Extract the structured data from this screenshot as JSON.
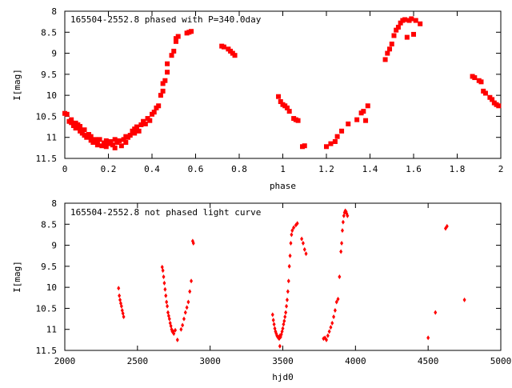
{
  "chart_data": [
    {
      "type": "scatter",
      "title": "165504-2552.8 phased with P=340.0day",
      "xlabel": "phase",
      "ylabel": "I[mag]",
      "xlim": [
        0,
        2
      ],
      "ylim": [
        11.5,
        8
      ],
      "y_inverted": true,
      "grid": false,
      "legend": "none",
      "marker": "square",
      "color": "#ff0000",
      "x_ticks": [
        "0",
        "0.2",
        "0.4",
        "0.6",
        "0.8",
        "1",
        "1.2",
        "1.4",
        "1.6",
        "1.8",
        "2"
      ],
      "x_tick_values": [
        0,
        0.2,
        0.4,
        0.6,
        0.8,
        1.0,
        1.2,
        1.4,
        1.6,
        1.8,
        2.0
      ],
      "y_ticks": [
        "8",
        "8.5",
        "9",
        "9.5",
        "10",
        "10.5",
        "11",
        "11.5"
      ],
      "y_tick_values": [
        8,
        8.5,
        9,
        9.5,
        10,
        10.5,
        11,
        11.5
      ],
      "points": [
        [
          0.0,
          10.43
        ],
        [
          0.01,
          10.45
        ],
        [
          0.02,
          10.62
        ],
        [
          0.03,
          10.65
        ],
        [
          0.03,
          10.58
        ],
        [
          0.04,
          10.72
        ],
        [
          0.05,
          10.66
        ],
        [
          0.05,
          10.78
        ],
        [
          0.06,
          10.7
        ],
        [
          0.07,
          10.85
        ],
        [
          0.07,
          10.74
        ],
        [
          0.08,
          10.9
        ],
        [
          0.09,
          10.82
        ],
        [
          0.09,
          10.95
        ],
        [
          0.1,
          11.0
        ],
        [
          0.11,
          10.93
        ],
        [
          0.12,
          11.07
        ],
        [
          0.12,
          10.98
        ],
        [
          0.13,
          11.12
        ],
        [
          0.14,
          11.05
        ],
        [
          0.15,
          11.1
        ],
        [
          0.15,
          11.18
        ],
        [
          0.16,
          11.05
        ],
        [
          0.17,
          11.2
        ],
        [
          0.18,
          11.13
        ],
        [
          0.19,
          11.22
        ],
        [
          0.19,
          11.08
        ],
        [
          0.2,
          11.15
        ],
        [
          0.21,
          11.1
        ],
        [
          0.22,
          11.18
        ],
        [
          0.23,
          11.05
        ],
        [
          0.23,
          11.25
        ],
        [
          0.24,
          11.12
        ],
        [
          0.25,
          11.08
        ],
        [
          0.26,
          11.2
        ],
        [
          0.27,
          11.05
        ],
        [
          0.28,
          11.12
        ],
        [
          0.28,
          10.98
        ],
        [
          0.29,
          11.0
        ],
        [
          0.3,
          10.95
        ],
        [
          0.31,
          10.85
        ],
        [
          0.32,
          10.9
        ],
        [
          0.32,
          10.8
        ],
        [
          0.33,
          10.75
        ],
        [
          0.34,
          10.85
        ],
        [
          0.35,
          10.7
        ],
        [
          0.36,
          10.62
        ],
        [
          0.37,
          10.68
        ],
        [
          0.38,
          10.55
        ],
        [
          0.39,
          10.6
        ],
        [
          0.4,
          10.45
        ],
        [
          0.41,
          10.4
        ],
        [
          0.42,
          10.3
        ],
        [
          0.43,
          10.25
        ],
        [
          0.44,
          10.0
        ],
        [
          0.45,
          9.9
        ],
        [
          0.45,
          9.72
        ],
        [
          0.46,
          9.65
        ],
        [
          0.47,
          9.45
        ],
        [
          0.47,
          9.25
        ],
        [
          0.49,
          9.05
        ],
        [
          0.5,
          8.95
        ],
        [
          0.51,
          8.72
        ],
        [
          0.51,
          8.65
        ],
        [
          0.52,
          8.6
        ],
        [
          0.56,
          8.52
        ],
        [
          0.57,
          8.5
        ],
        [
          0.58,
          8.48
        ],
        [
          0.72,
          8.83
        ],
        [
          0.73,
          8.85
        ],
        [
          0.75,
          8.9
        ],
        [
          0.76,
          8.95
        ],
        [
          0.77,
          9.0
        ],
        [
          0.78,
          9.05
        ],
        [
          0.98,
          10.03
        ],
        [
          0.99,
          10.15
        ],
        [
          1.0,
          10.22
        ],
        [
          1.01,
          10.25
        ],
        [
          1.02,
          10.3
        ],
        [
          1.03,
          10.38
        ],
        [
          1.05,
          10.55
        ],
        [
          1.06,
          10.58
        ],
        [
          1.07,
          10.6
        ],
        [
          1.09,
          11.22
        ],
        [
          1.1,
          11.2
        ],
        [
          1.2,
          11.22
        ],
        [
          1.22,
          11.15
        ],
        [
          1.24,
          11.1
        ],
        [
          1.25,
          10.98
        ],
        [
          1.27,
          10.85
        ],
        [
          1.3,
          10.68
        ],
        [
          1.34,
          10.58
        ],
        [
          1.36,
          10.42
        ],
        [
          1.37,
          10.38
        ],
        [
          1.38,
          10.6
        ],
        [
          1.39,
          10.25
        ],
        [
          1.47,
          9.15
        ],
        [
          1.48,
          9.0
        ],
        [
          1.49,
          8.9
        ],
        [
          1.5,
          8.78
        ],
        [
          1.51,
          8.58
        ],
        [
          1.52,
          8.45
        ],
        [
          1.53,
          8.38
        ],
        [
          1.54,
          8.28
        ],
        [
          1.55,
          8.22
        ],
        [
          1.56,
          8.2
        ],
        [
          1.57,
          8.62
        ],
        [
          1.58,
          8.22
        ],
        [
          1.59,
          8.18
        ],
        [
          1.6,
          8.55
        ],
        [
          1.61,
          8.22
        ],
        [
          1.63,
          8.3
        ],
        [
          1.87,
          9.55
        ],
        [
          1.88,
          9.58
        ],
        [
          1.9,
          9.65
        ],
        [
          1.91,
          9.68
        ],
        [
          1.92,
          9.9
        ],
        [
          1.93,
          9.95
        ],
        [
          1.95,
          10.05
        ],
        [
          1.96,
          10.1
        ],
        [
          1.97,
          10.18
        ],
        [
          1.98,
          10.22
        ],
        [
          1.99,
          10.25
        ]
      ]
    },
    {
      "type": "scatter",
      "title": "165504-2552.8 not phased light curve",
      "xlabel": "hjd0",
      "ylabel": "I[mag]",
      "xlim": [
        2000,
        5000
      ],
      "ylim": [
        11.5,
        8
      ],
      "y_inverted": true,
      "grid": false,
      "legend": "none",
      "marker": "diamond",
      "color": "#ff0000",
      "x_ticks": [
        "2000",
        "2500",
        "3000",
        "3500",
        "4000",
        "4500",
        "5000"
      ],
      "x_tick_values": [
        2000,
        2500,
        3000,
        3500,
        4000,
        4500,
        5000
      ],
      "y_ticks": [
        "8",
        "8.5",
        "9",
        "9.5",
        "10",
        "10.5",
        "11",
        "11.5"
      ],
      "y_tick_values": [
        8,
        8.5,
        9,
        9.5,
        10,
        10.5,
        11,
        11.5
      ],
      "points": [
        [
          2370,
          10.02
        ],
        [
          2375,
          10.2
        ],
        [
          2380,
          10.3
        ],
        [
          2385,
          10.38
        ],
        [
          2390,
          10.45
        ],
        [
          2395,
          10.55
        ],
        [
          2400,
          10.62
        ],
        [
          2405,
          10.7
        ],
        [
          2670,
          9.52
        ],
        [
          2675,
          9.6
        ],
        [
          2680,
          9.75
        ],
        [
          2685,
          9.9
        ],
        [
          2690,
          10.05
        ],
        [
          2695,
          10.2
        ],
        [
          2700,
          10.35
        ],
        [
          2705,
          10.45
        ],
        [
          2710,
          10.6
        ],
        [
          2715,
          10.68
        ],
        [
          2720,
          10.75
        ],
        [
          2725,
          10.85
        ],
        [
          2730,
          10.92
        ],
        [
          2735,
          11.0
        ],
        [
          2740,
          11.05
        ],
        [
          2745,
          11.05
        ],
        [
          2750,
          11.1
        ],
        [
          2760,
          11.02
        ],
        [
          2775,
          11.25
        ],
        [
          2800,
          11.0
        ],
        [
          2810,
          10.9
        ],
        [
          2820,
          10.75
        ],
        [
          2830,
          10.6
        ],
        [
          2840,
          10.48
        ],
        [
          2850,
          10.35
        ],
        [
          2860,
          10.1
        ],
        [
          2870,
          9.85
        ],
        [
          2880,
          8.9
        ],
        [
          2885,
          8.95
        ],
        [
          3430,
          10.65
        ],
        [
          3435,
          10.78
        ],
        [
          3440,
          10.88
        ],
        [
          3445,
          10.98
        ],
        [
          3450,
          11.05
        ],
        [
          3455,
          11.1
        ],
        [
          3460,
          11.15
        ],
        [
          3465,
          11.18
        ],
        [
          3470,
          11.2
        ],
        [
          3475,
          11.22
        ],
        [
          3480,
          11.15
        ],
        [
          3485,
          11.18
        ],
        [
          3490,
          11.12
        ],
        [
          3495,
          11.05
        ],
        [
          3500,
          10.98
        ],
        [
          3505,
          10.88
        ],
        [
          3510,
          10.8
        ],
        [
          3515,
          10.7
        ],
        [
          3520,
          10.6
        ],
        [
          3525,
          10.45
        ],
        [
          3530,
          10.3
        ],
        [
          3535,
          10.1
        ],
        [
          3540,
          9.85
        ],
        [
          3545,
          9.5
        ],
        [
          3550,
          9.25
        ],
        [
          3555,
          8.95
        ],
        [
          3560,
          8.75
        ],
        [
          3565,
          8.65
        ],
        [
          3575,
          8.58
        ],
        [
          3590,
          8.52
        ],
        [
          3600,
          8.48
        ],
        [
          3480,
          11.4
        ],
        [
          3630,
          8.85
        ],
        [
          3640,
          8.95
        ],
        [
          3650,
          9.1
        ],
        [
          3660,
          9.2
        ],
        [
          3780,
          11.22
        ],
        [
          3790,
          11.2
        ],
        [
          3800,
          11.25
        ],
        [
          3810,
          11.15
        ],
        [
          3820,
          11.05
        ],
        [
          3830,
          10.95
        ],
        [
          3840,
          10.85
        ],
        [
          3850,
          10.7
        ],
        [
          3860,
          10.55
        ],
        [
          3870,
          10.35
        ],
        [
          3880,
          10.28
        ],
        [
          3890,
          9.75
        ],
        [
          3900,
          9.15
        ],
        [
          3905,
          8.95
        ],
        [
          3910,
          8.65
        ],
        [
          3915,
          8.45
        ],
        [
          3920,
          8.3
        ],
        [
          3925,
          8.22
        ],
        [
          3930,
          8.18
        ],
        [
          3935,
          8.2
        ],
        [
          3940,
          8.25
        ],
        [
          3945,
          8.3
        ],
        [
          4500,
          11.2
        ],
        [
          4550,
          10.6
        ],
        [
          4620,
          8.6
        ],
        [
          4630,
          8.55
        ],
        [
          4750,
          10.3
        ]
      ]
    }
  ]
}
